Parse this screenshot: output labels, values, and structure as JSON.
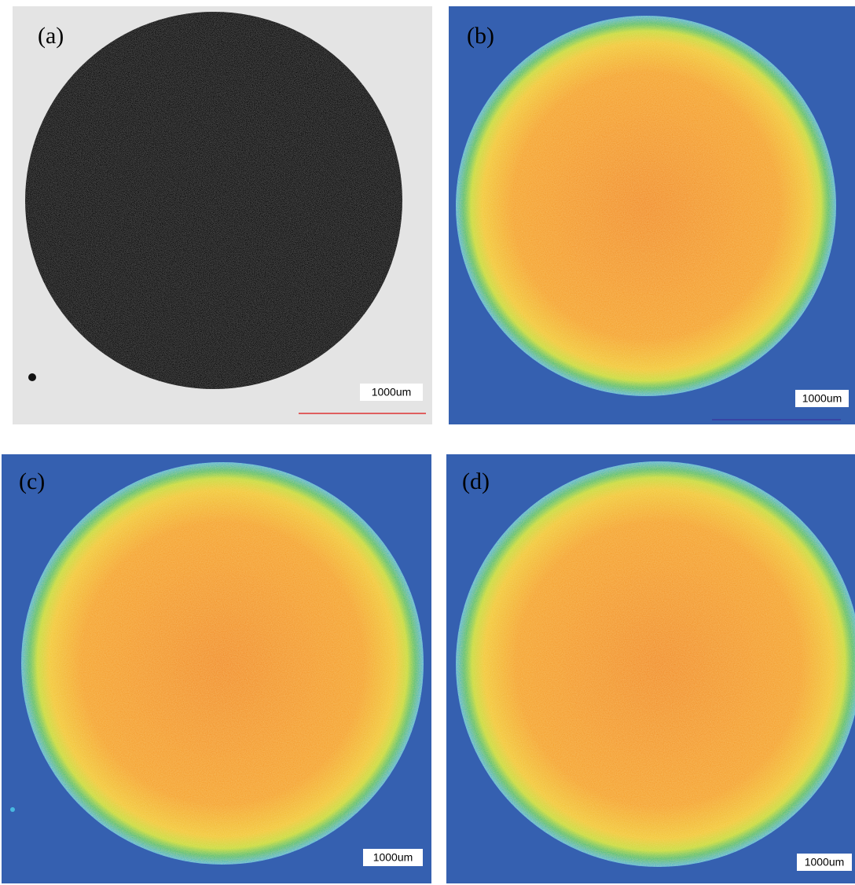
{
  "panels": [
    {
      "label": "(a)",
      "scale_bar": "1000um"
    },
    {
      "label": "(b)",
      "scale_bar": "1000um"
    },
    {
      "label": "(c)",
      "scale_bar": "1000um"
    },
    {
      "label": "(d)",
      "scale_bar": "1000um"
    }
  ]
}
